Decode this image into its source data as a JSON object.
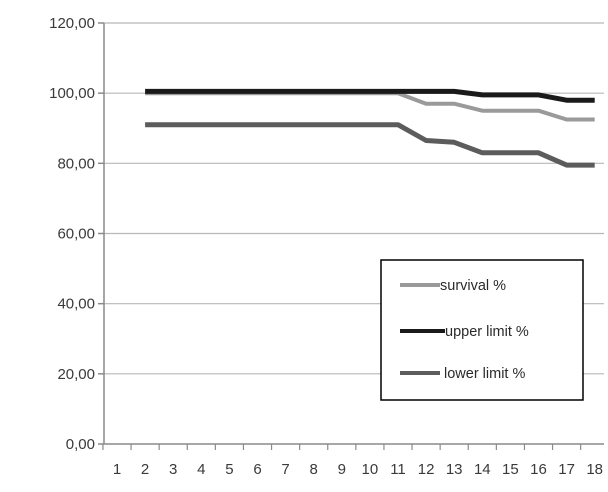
{
  "chart_data": {
    "type": "line",
    "x": [
      2,
      3,
      4,
      5,
      6,
      7,
      8,
      9,
      10,
      11,
      12,
      13,
      14,
      15,
      16,
      17,
      18
    ],
    "x_ticks": [
      "1",
      "2",
      "3",
      "4",
      "5",
      "6",
      "7",
      "8",
      "9",
      "10",
      "11",
      "12",
      "13",
      "14",
      "15",
      "16",
      "17",
      "18"
    ],
    "y_ticks": [
      "0,00",
      "20,00",
      "40,00",
      "60,00",
      "80,00",
      "100,00",
      "120,00"
    ],
    "ylim": [
      0,
      120
    ],
    "grid": true,
    "legend_position": "right",
    "series": [
      {
        "name": "survival %",
        "color": "#9a9a9a",
        "values": [
          100,
          100,
          100,
          100,
          100,
          100,
          100,
          100,
          100,
          100,
          97,
          97,
          95,
          95,
          95,
          92.5,
          92.5
        ]
      },
      {
        "name": "upper limit %",
        "color": "#1a1a1a",
        "values": [
          100.5,
          100.5,
          100.5,
          100.5,
          100.5,
          100.5,
          100.5,
          100.5,
          100.5,
          100.5,
          100.5,
          100.5,
          99.5,
          99.5,
          99.5,
          98,
          98
        ]
      },
      {
        "name": "lower limit %",
        "color": "#5c5c5c",
        "values": [
          91,
          91,
          91,
          91,
          91,
          91,
          91,
          91,
          91,
          91,
          86.5,
          86,
          83,
          83,
          83,
          79.5,
          79.5
        ]
      }
    ]
  }
}
